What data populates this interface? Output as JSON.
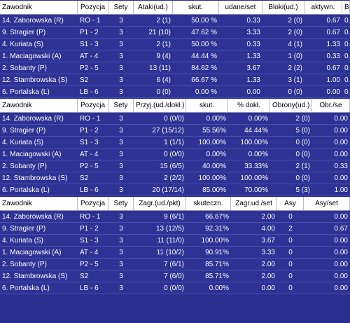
{
  "colors": {
    "background": "#2a2e8f",
    "header_bg": "#ffffff",
    "text": "#ffffff"
  },
  "table1": {
    "headers": [
      "Zawodnik",
      "Pozycja",
      "Sety",
      "Ataki(ud.)",
      "skut.",
      "udane/set",
      "Bloki(ud.)",
      "aktywn.",
      "Bl"
    ],
    "rows": [
      [
        "14. Zaborowska (R)",
        "RO - 1",
        "3",
        "2 (1)",
        "50.00 %",
        "0.33",
        "2 (0)",
        "0.67",
        "0.00"
      ],
      [
        "9. Stragier (P)",
        "P1 - 2",
        "3",
        "21 (10)",
        "47.62 %",
        "3.33",
        "2 (0)",
        "0.67",
        "0.00"
      ],
      [
        "4. Kuriata (S)",
        "S1 - 3",
        "3",
        "2 (1)",
        "50.00 %",
        "0.33",
        "4 (1)",
        "1.33",
        "0.33"
      ],
      [
        "1. Maciagowski (A)",
        "AT - 4",
        "3",
        "9 (4)",
        "44.44 %",
        "1.33",
        "1 (0)",
        "0.33",
        "0.00"
      ],
      [
        "2. Sobanty (P)",
        "P2 - 5",
        "3",
        "13 (11)",
        "84.62 %",
        "3.67",
        "2 (2)",
        "0.67",
        "0.67"
      ],
      [
        "12. Stambrowska (S)",
        "S2",
        "3",
        "6 (4)",
        "66.67 %",
        "1.33",
        "3 (1)",
        "1.00",
        "0.33"
      ],
      [
        "6. Portalska (L)",
        "LB - 6",
        "3",
        "0 (0)",
        "0.00 %",
        "0.00",
        "0 (0)",
        "0.00",
        "0.00"
      ]
    ]
  },
  "table2": {
    "headers": [
      "Zawodnik",
      "Pozycja",
      "Sety",
      "Przyj.(ud./dokł.)",
      "skut.",
      "% dokł.",
      "Obrony(ud.)",
      "Obr./se"
    ],
    "rows": [
      [
        "14. Zaborowska (R)",
        "RO - 1",
        "3",
        "0 (0/0)",
        "0.00%",
        "0.00%",
        "2 (0)",
        "0.00"
      ],
      [
        "9. Stragier (P)",
        "P1 - 2",
        "3",
        "27 (15/12)",
        "55.56%",
        "44.44%",
        "5 (0)",
        "0.00"
      ],
      [
        "4. Kuriata (S)",
        "S1 - 3",
        "3",
        "1 (1/1)",
        "100.00%",
        "100.00%",
        "0 (0)",
        "0.00"
      ],
      [
        "1. Maciagowski (A)",
        "AT - 4",
        "3",
        "0 (0/0)",
        "0.00%",
        "0.00%",
        "0 (0)",
        "0.00"
      ],
      [
        "2. Sobanty (P)",
        "P2 - 5",
        "3",
        "15 (6/5)",
        "40.00%",
        "33.33%",
        "2 (1)",
        "0.33"
      ],
      [
        "12. Stambrowska (S)",
        "S2",
        "3",
        "2 (2/2)",
        "100.00%",
        "100.00%",
        "0 (0)",
        "0.00"
      ],
      [
        "6. Portalska (L)",
        "LB - 6",
        "3",
        "20 (17/14)",
        "85.00%",
        "70.00%",
        "5 (3)",
        "1.00"
      ]
    ]
  },
  "table3": {
    "headers": [
      "Zawodnik",
      "Pozycja",
      "Sety",
      "Zagr.(ud./pkt)",
      "skuteczn.",
      "Zagr.ud./set",
      "Asy",
      "Asy/set"
    ],
    "rows": [
      [
        "14. Zaborowska (R)",
        "RO - 1",
        "3",
        "9 (6/1)",
        "66.67%",
        "2.00",
        "0",
        "0.00"
      ],
      [
        "9. Stragier (P)",
        "P1 - 2",
        "3",
        "13 (12/5)",
        "92.31%",
        "4.00",
        "2",
        "0.67"
      ],
      [
        "4. Kuriata (S)",
        "S1 - 3",
        "3",
        "11 (11/0)",
        "100.00%",
        "3.67",
        "0",
        "0.00"
      ],
      [
        "1. Maciagowski (A)",
        "AT - 4",
        "3",
        "11 (10/2)",
        "90.91%",
        "3.33",
        "0",
        "0.00"
      ],
      [
        "2. Sobanty (P)",
        "P2 - 5",
        "3",
        "7 (6/1)",
        "85.71%",
        "2.00",
        "0",
        "0.00"
      ],
      [
        "12. Stambrowska (S)",
        "S2",
        "3",
        "7 (6/0)",
        "85.71%",
        "2.00",
        "0",
        "0.00"
      ],
      [
        "6. Portalska (L)",
        "LB - 6",
        "3",
        "0 (0/0)",
        "0.00%",
        "0.00",
        "0",
        "0.00"
      ]
    ]
  }
}
